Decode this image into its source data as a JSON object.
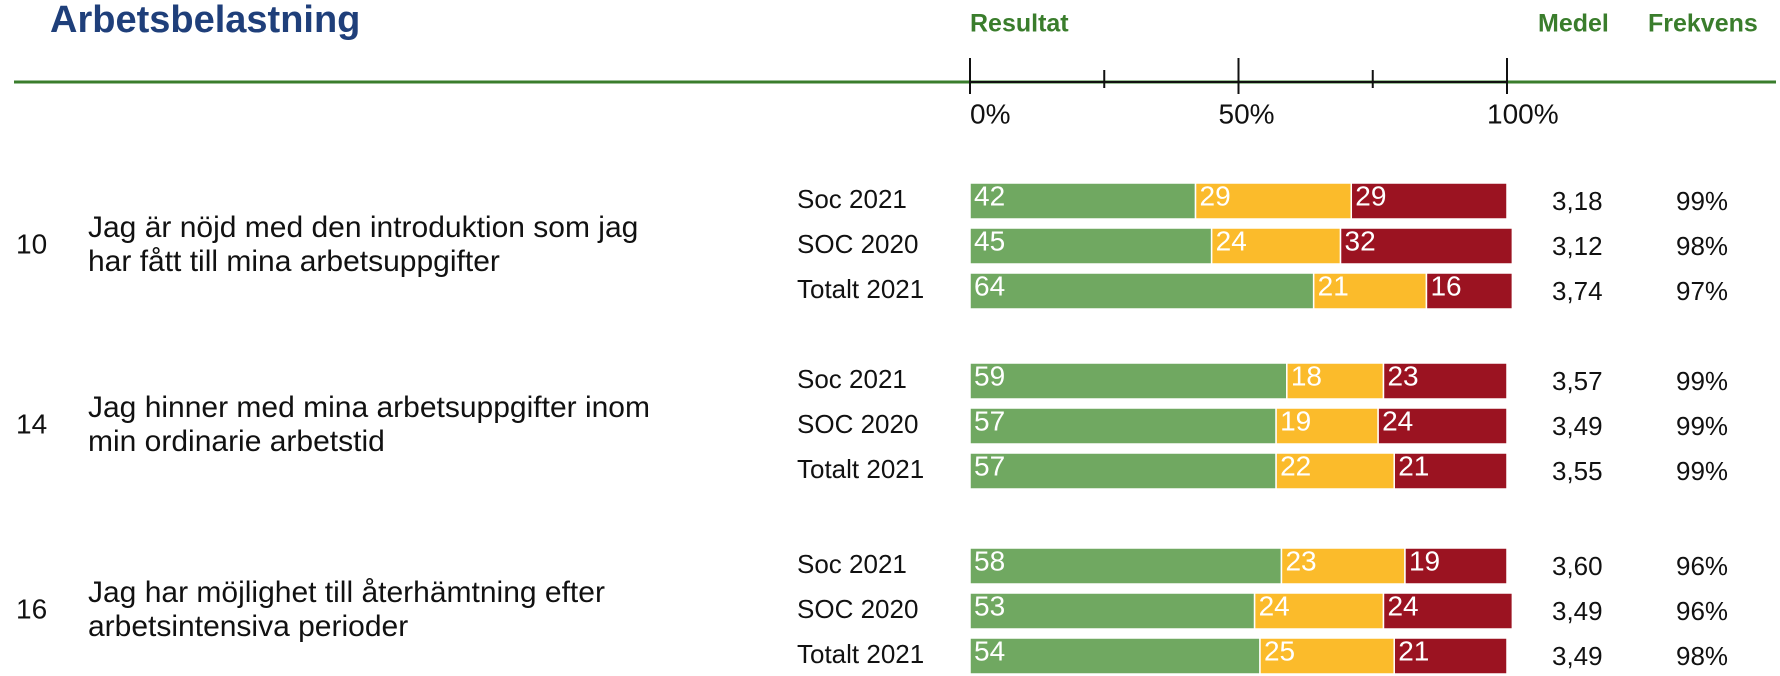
{
  "chart_data": {
    "type": "stacked_bar_groups",
    "title": "Arbetsbelastning",
    "column_headers": {
      "result": "Resultat",
      "mean": "Medel",
      "frequency": "Frekvens"
    },
    "xlim": [
      0,
      100
    ],
    "xticks": [
      {
        "value": 0,
        "label": "0%"
      },
      {
        "value": 50,
        "label": "50%"
      },
      {
        "value": 100,
        "label": "100%"
      }
    ],
    "xticks_minor": [
      25,
      75
    ],
    "colors": [
      "#70a861",
      "#fbbb2b",
      "#9b1321"
    ],
    "groups": [
      {
        "number": "10",
        "question": [
          "Jag är nöjd med den introduktion som jag",
          "har fått till mina arbetsuppgifter"
        ],
        "rows": [
          {
            "label": "Soc 2021",
            "values": [
              42,
              29,
              29
            ],
            "mean": "3,18",
            "frequency": "99%"
          },
          {
            "label": "SOC 2020",
            "values": [
              45,
              24,
              32
            ],
            "mean": "3,12",
            "frequency": "98%"
          },
          {
            "label": "Totalt 2021",
            "values": [
              64,
              21,
              16
            ],
            "mean": "3,74",
            "frequency": "97%"
          }
        ]
      },
      {
        "number": "14",
        "question": [
          "Jag hinner med mina arbetsuppgifter inom",
          "min ordinarie arbetstid"
        ],
        "rows": [
          {
            "label": "Soc 2021",
            "values": [
              59,
              18,
              23
            ],
            "mean": "3,57",
            "frequency": "99%"
          },
          {
            "label": "SOC 2020",
            "values": [
              57,
              19,
              24
            ],
            "mean": "3,49",
            "frequency": "99%"
          },
          {
            "label": "Totalt 2021",
            "values": [
              57,
              22,
              21
            ],
            "mean": "3,55",
            "frequency": "99%"
          }
        ]
      },
      {
        "number": "16",
        "question": [
          "Jag har möjlighet till återhämtning efter",
          "arbetsintensiva perioder"
        ],
        "rows": [
          {
            "label": "Soc 2021",
            "values": [
              58,
              23,
              19
            ],
            "mean": "3,60",
            "frequency": "96%"
          },
          {
            "label": "SOC 2020",
            "values": [
              53,
              24,
              24
            ],
            "mean": "3,49",
            "frequency": "96%"
          },
          {
            "label": "Totalt 2021",
            "values": [
              54,
              25,
              21
            ],
            "mean": "3,49",
            "frequency": "98%"
          }
        ]
      }
    ]
  }
}
